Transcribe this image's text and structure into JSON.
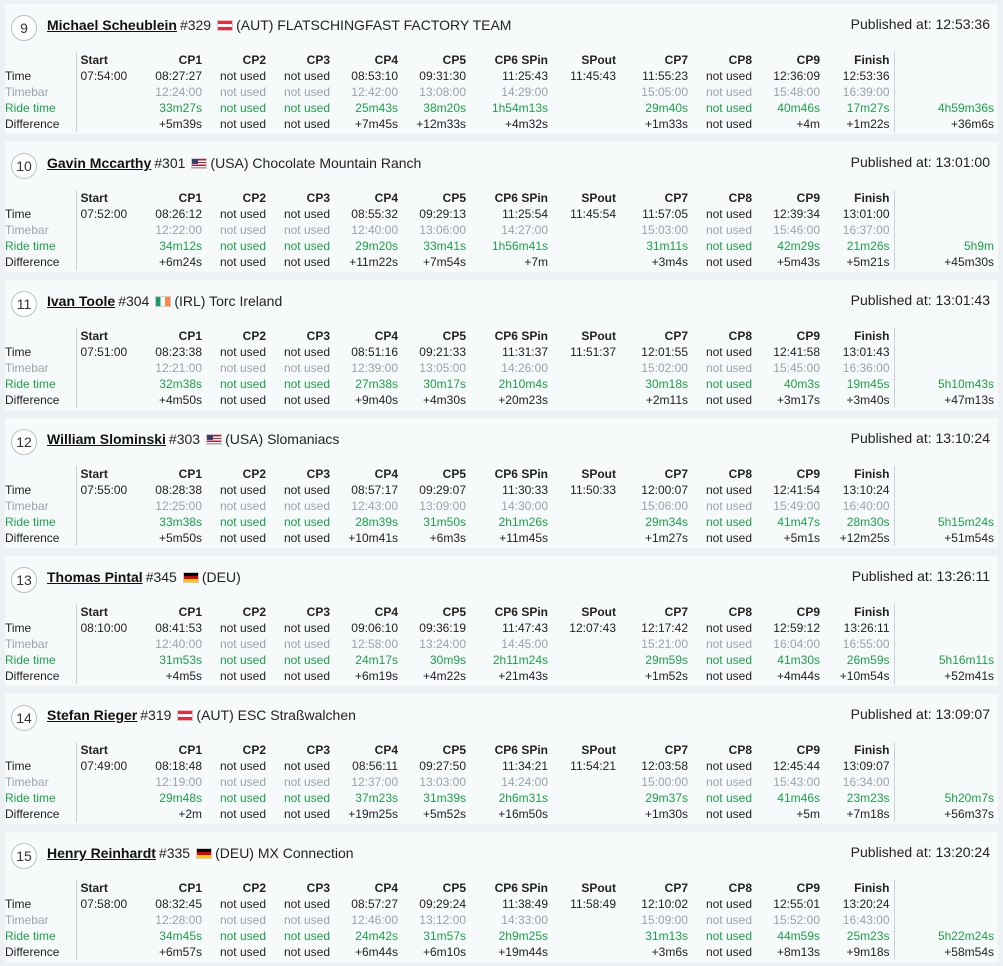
{
  "labels": {
    "published_prefix": "Published at: ",
    "columns": [
      "Start",
      "CP1",
      "CP2",
      "CP3",
      "CP4",
      "CP5",
      "CP6 SPin",
      "SPout",
      "CP7",
      "CP8",
      "CP9",
      "Finish"
    ],
    "rows": [
      "Time",
      "Timebar",
      "Ride time",
      "Difference"
    ]
  },
  "colors": {
    "ride_time": "#1ca04a",
    "timebar": "#9aa3a8"
  },
  "entries": [
    {
      "position": "9",
      "name": "Michael Scheublein",
      "bib": "#329",
      "country": "AUT",
      "team": "(AUT) FLATSCHINGFAST FACTORY TEAM",
      "published": "12:53:36",
      "time": [
        "07:54:00",
        "08:27:27",
        "not used",
        "not used",
        "08:53:10",
        "09:31:30",
        "11:25:43",
        "11:45:43",
        "11:55:23",
        "not used",
        "12:36:09",
        "12:53:36",
        ""
      ],
      "timebar": [
        "",
        "12:24:00",
        "not used",
        "not used",
        "12:42:00",
        "13:08:00",
        "14:29:00",
        "",
        "15:05:00",
        "not used",
        "15:48:00",
        "16:39:00",
        ""
      ],
      "ride": [
        "",
        "33m27s",
        "not used",
        "not used",
        "25m43s",
        "38m20s",
        "1h54m13s",
        "",
        "29m40s",
        "not used",
        "40m46s",
        "17m27s",
        "4h59m36s"
      ],
      "diff": [
        "",
        "+5m39s",
        "not used",
        "not used",
        "+7m45s",
        "+12m33s",
        "+4m32s",
        "",
        "+1m33s",
        "not used",
        "+4m",
        "+1m22s",
        "+36m6s"
      ]
    },
    {
      "position": "10",
      "name": "Gavin Mccarthy",
      "bib": "#301",
      "country": "USA",
      "team": "(USA) Chocolate Mountain Ranch",
      "published": "13:01:00",
      "time": [
        "07:52:00",
        "08:26:12",
        "not used",
        "not used",
        "08:55:32",
        "09:29:13",
        "11:25:54",
        "11:45:54",
        "11:57:05",
        "not used",
        "12:39:34",
        "13:01:00",
        ""
      ],
      "timebar": [
        "",
        "12:22:00",
        "not used",
        "not used",
        "12:40:00",
        "13:06:00",
        "14:27:00",
        "",
        "15:03:00",
        "not used",
        "15:46:00",
        "16:37:00",
        ""
      ],
      "ride": [
        "",
        "34m12s",
        "not used",
        "not used",
        "29m20s",
        "33m41s",
        "1h56m41s",
        "",
        "31m11s",
        "not used",
        "42m29s",
        "21m26s",
        "5h9m"
      ],
      "diff": [
        "",
        "+6m24s",
        "not used",
        "not used",
        "+11m22s",
        "+7m54s",
        "+7m",
        "",
        "+3m4s",
        "not used",
        "+5m43s",
        "+5m21s",
        "+45m30s"
      ]
    },
    {
      "position": "11",
      "name": "Ivan Toole",
      "bib": "#304",
      "country": "IRL",
      "team": "(IRL) Torc Ireland",
      "published": "13:01:43",
      "time": [
        "07:51:00",
        "08:23:38",
        "not used",
        "not used",
        "08:51:16",
        "09:21:33",
        "11:31:37",
        "11:51:37",
        "12:01:55",
        "not used",
        "12:41:58",
        "13:01:43",
        ""
      ],
      "timebar": [
        "",
        "12:21:00",
        "not used",
        "not used",
        "12:39:00",
        "13:05:00",
        "14:26:00",
        "",
        "15:02:00",
        "not used",
        "15:45:00",
        "16:36:00",
        ""
      ],
      "ride": [
        "",
        "32m38s",
        "not used",
        "not used",
        "27m38s",
        "30m17s",
        "2h10m4s",
        "",
        "30m18s",
        "not used",
        "40m3s",
        "19m45s",
        "5h10m43s"
      ],
      "diff": [
        "",
        "+4m50s",
        "not used",
        "not used",
        "+9m40s",
        "+4m30s",
        "+20m23s",
        "",
        "+2m11s",
        "not used",
        "+3m17s",
        "+3m40s",
        "+47m13s"
      ]
    },
    {
      "position": "12",
      "name": "William Slominski",
      "bib": "#303",
      "country": "USA",
      "team": "(USA) Slomaniacs",
      "published": "13:10:24",
      "time": [
        "07:55:00",
        "08:28:38",
        "not used",
        "not used",
        "08:57:17",
        "09:29:07",
        "11:30:33",
        "11:50:33",
        "12:00:07",
        "not used",
        "12:41:54",
        "13:10:24",
        ""
      ],
      "timebar": [
        "",
        "12:25:00",
        "not used",
        "not used",
        "12:43:00",
        "13:09:00",
        "14:30:00",
        "",
        "15:06:00",
        "not used",
        "15:49:00",
        "16:40:00",
        ""
      ],
      "ride": [
        "",
        "33m38s",
        "not used",
        "not used",
        "28m39s",
        "31m50s",
        "2h1m26s",
        "",
        "29m34s",
        "not used",
        "41m47s",
        "28m30s",
        "5h15m24s"
      ],
      "diff": [
        "",
        "+5m50s",
        "not used",
        "not used",
        "+10m41s",
        "+6m3s",
        "+11m45s",
        "",
        "+1m27s",
        "not used",
        "+5m1s",
        "+12m25s",
        "+51m54s"
      ]
    },
    {
      "position": "13",
      "name": "Thomas Pintal",
      "bib": "#345",
      "country": "DEU",
      "team": "(DEU)",
      "published": "13:26:11",
      "time": [
        "08:10:00",
        "08:41:53",
        "not used",
        "not used",
        "09:06:10",
        "09:36:19",
        "11:47:43",
        "12:07:43",
        "12:17:42",
        "not used",
        "12:59:12",
        "13:26:11",
        ""
      ],
      "timebar": [
        "",
        "12:40:00",
        "not used",
        "not used",
        "12:58:00",
        "13:24:00",
        "14:45:00",
        "",
        "15:21:00",
        "not used",
        "16:04:00",
        "16:55:00",
        ""
      ],
      "ride": [
        "",
        "31m53s",
        "not used",
        "not used",
        "24m17s",
        "30m9s",
        "2h11m24s",
        "",
        "29m59s",
        "not used",
        "41m30s",
        "26m59s",
        "5h16m11s"
      ],
      "diff": [
        "",
        "+4m5s",
        "not used",
        "not used",
        "+6m19s",
        "+4m22s",
        "+21m43s",
        "",
        "+1m52s",
        "not used",
        "+4m44s",
        "+10m54s",
        "+52m41s"
      ]
    },
    {
      "position": "14",
      "name": "Stefan Rieger",
      "bib": "#319",
      "country": "AUT",
      "team": "(AUT) ESC Straßwalchen",
      "published": "13:09:07",
      "time": [
        "07:49:00",
        "08:18:48",
        "not used",
        "not used",
        "08:56:11",
        "09:27:50",
        "11:34:21",
        "11:54:21",
        "12:03:58",
        "not used",
        "12:45:44",
        "13:09:07",
        ""
      ],
      "timebar": [
        "",
        "12:19:00",
        "not used",
        "not used",
        "12:37:00",
        "13:03:00",
        "14:24:00",
        "",
        "15:00:00",
        "not used",
        "15:43:00",
        "16:34:00",
        ""
      ],
      "ride": [
        "",
        "29m48s",
        "not used",
        "not used",
        "37m23s",
        "31m39s",
        "2h6m31s",
        "",
        "29m37s",
        "not used",
        "41m46s",
        "23m23s",
        "5h20m7s"
      ],
      "diff": [
        "",
        "+2m",
        "not used",
        "not used",
        "+19m25s",
        "+5m52s",
        "+16m50s",
        "",
        "+1m30s",
        "not used",
        "+5m",
        "+7m18s",
        "+56m37s"
      ]
    },
    {
      "position": "15",
      "name": "Henry Reinhardt",
      "bib": "#335",
      "country": "DEU",
      "team": "(DEU) MX Connection",
      "published": "13:20:24",
      "time": [
        "07:58:00",
        "08:32:45",
        "not used",
        "not used",
        "08:57:27",
        "09:29:24",
        "11:38:49",
        "11:58:49",
        "12:10:02",
        "not used",
        "12:55:01",
        "13:20:24",
        ""
      ],
      "timebar": [
        "",
        "12:28:00",
        "not used",
        "not used",
        "12:46:00",
        "13:12:00",
        "14:33:00",
        "",
        "15:09:00",
        "not used",
        "15:52:00",
        "16:43:00",
        ""
      ],
      "ride": [
        "",
        "34m45s",
        "not used",
        "not used",
        "24m42s",
        "31m57s",
        "2h9m25s",
        "",
        "31m13s",
        "not used",
        "44m59s",
        "25m23s",
        "5h22m24s"
      ],
      "diff": [
        "",
        "+6m57s",
        "not used",
        "not used",
        "+6m44s",
        "+6m10s",
        "+19m44s",
        "",
        "+3m6s",
        "not used",
        "+8m13s",
        "+9m18s",
        "+58m54s"
      ]
    }
  ]
}
